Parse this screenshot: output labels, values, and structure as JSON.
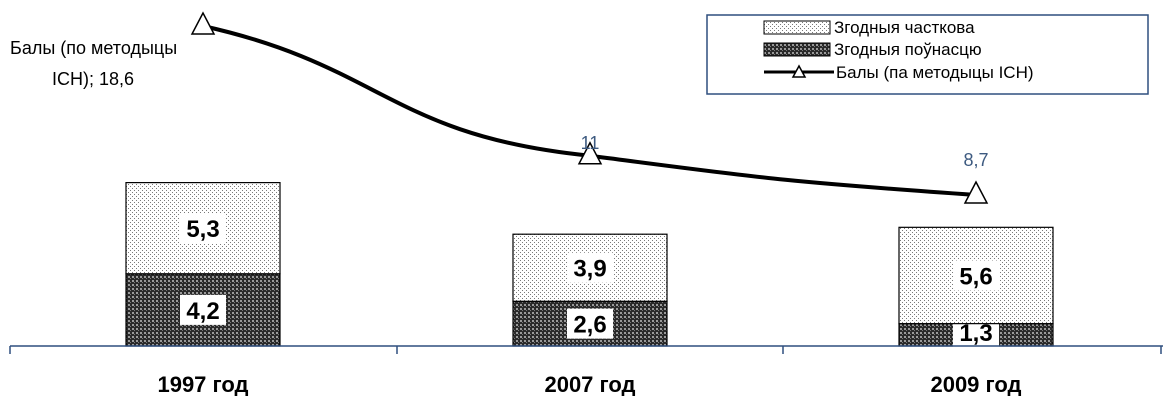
{
  "chart_data": {
    "type": "bar",
    "stacked": true,
    "categories": [
      "1997 год",
      "2007 год",
      "2009 год"
    ],
    "series": [
      {
        "name": "Згодныя поўнасцю",
        "values": [
          4.2,
          2.6,
          1.3
        ],
        "labels": [
          "4,2",
          "2,6",
          "1,3"
        ],
        "pattern": "dense-dots",
        "color": "#555555"
      },
      {
        "name": "Згодныя часткова",
        "values": [
          5.3,
          3.9,
          5.6
        ],
        "labels": [
          "5,3",
          "3,9",
          "5,6"
        ],
        "pattern": "sparse-dots",
        "color": "#f2f2f2"
      }
    ],
    "line_series": {
      "name": "Балы (па методыцы ICH)",
      "values": [
        18.6,
        11,
        8.7
      ],
      "labels": [
        "18,6",
        "11",
        "8,7"
      ],
      "first_label_text": [
        "Балы (по методыцы",
        "ICH); 18,6"
      ],
      "marker": "triangle",
      "color": "#000000",
      "label_color": "#3d5a80"
    },
    "legend": {
      "position": "top-right"
    },
    "axis_color": "#2f4f7f",
    "grid": false
  }
}
